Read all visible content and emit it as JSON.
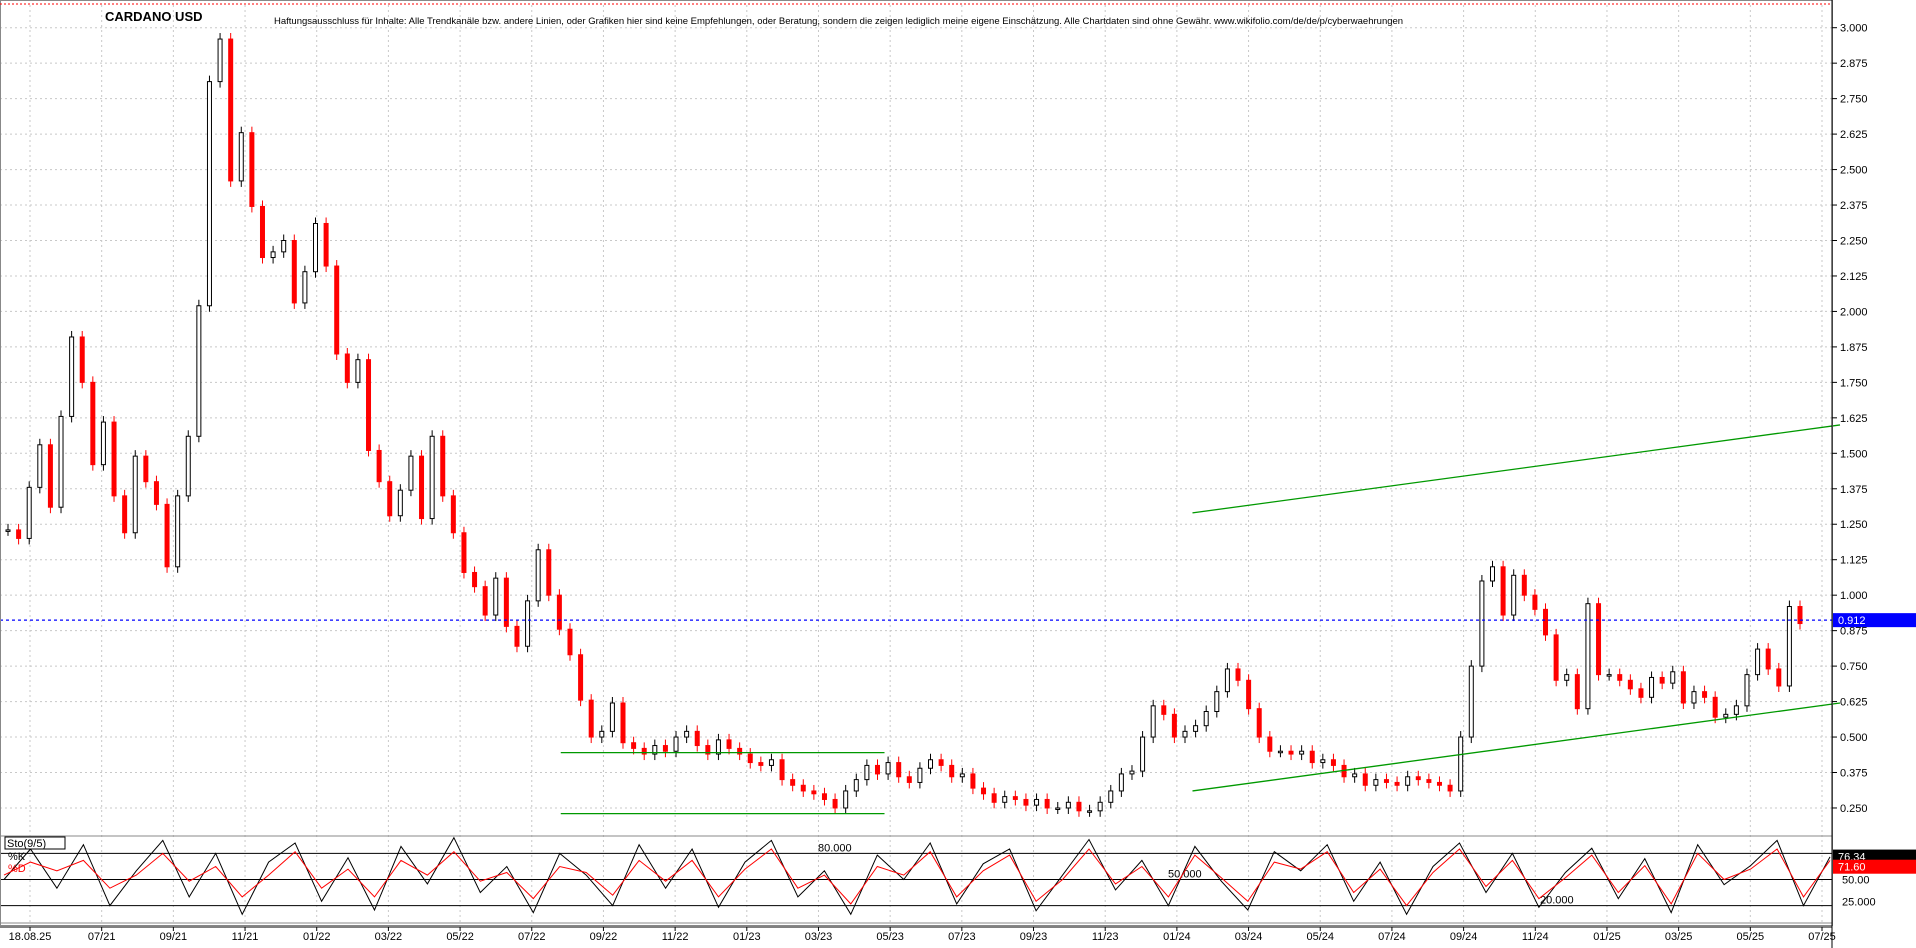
{
  "header": {
    "symbol": "CARDANO USD",
    "disclaimer": "Haftungsausschluss für Inhalte: Alle Trendkanäle bzw. andere Linien, oder Grafiken hier sind keine Empfehlungen, oder Beratung, sondern die zeigen lediglich meine eigene Einschätzung. Alle Chartdaten sind ohne Gewähr.  www.wikifolio.com/de/de/p/cyberwaehrungen"
  },
  "colors": {
    "up": "#000000",
    "down": "#ff0000",
    "trendline": "#009900",
    "current_price": "#0000ff",
    "grid": "#c8c8c8",
    "k_line": "#000000",
    "d_line": "#ff0000"
  },
  "chart_data": [
    {
      "type": "line",
      "name": "price",
      "y_ticks": [
        "3.000",
        "2.875",
        "2.750",
        "2.625",
        "2.500",
        "2.375",
        "2.250",
        "2.125",
        "2.000",
        "1.875",
        "1.750",
        "1.625",
        "1.500",
        "1.375",
        "1.250",
        "1.125",
        "1.000",
        "0.875",
        "0.750",
        "0.625",
        "0.500",
        "0.375",
        "0.250"
      ],
      "x_ticks": [
        "18.08.25",
        "07/21",
        "09/21",
        "11/21",
        "01/22",
        "03/22",
        "05/22",
        "07/22",
        "09/22",
        "11/22",
        "01/23",
        "03/23",
        "05/23",
        "07/23",
        "09/23",
        "11/23",
        "01/24",
        "03/24",
        "05/24",
        "07/24",
        "09/24",
        "11/24",
        "01/25",
        "03/25",
        "05/25",
        "07/25"
      ],
      "ylim": [
        0.19,
        3.08
      ],
      "current_price": {
        "value": 0.912,
        "label": "0.912"
      },
      "series": [
        {
          "values": [
            1.23,
            1.2,
            1.38,
            1.53,
            1.31,
            1.63,
            1.91,
            1.75,
            1.46,
            1.61,
            1.35,
            1.22,
            1.49,
            1.4,
            1.32,
            1.1,
            1.35,
            1.56,
            2.02,
            2.81,
            2.96,
            2.46,
            2.63,
            2.37,
            2.19,
            2.21,
            2.25,
            2.03,
            2.14,
            2.31,
            2.16,
            1.85,
            1.75,
            1.83,
            1.51,
            1.4,
            1.28,
            1.37,
            1.49,
            1.27,
            1.56,
            1.35,
            1.22,
            1.08,
            1.03,
            0.93,
            1.06,
            0.89,
            0.82,
            0.98,
            1.16,
            1.0,
            0.88,
            0.79,
            0.63,
            0.5,
            0.52,
            0.62,
            0.48,
            0.46,
            0.44,
            0.47,
            0.45,
            0.5,
            0.52,
            0.47,
            0.44,
            0.49,
            0.46,
            0.44,
            0.41,
            0.4,
            0.42,
            0.35,
            0.33,
            0.31,
            0.3,
            0.28,
            0.25,
            0.31,
            0.35,
            0.4,
            0.37,
            0.41,
            0.36,
            0.34,
            0.39,
            0.42,
            0.4,
            0.36,
            0.37,
            0.32,
            0.3,
            0.27,
            0.29,
            0.28,
            0.26,
            0.28,
            0.25,
            0.25,
            0.27,
            0.24,
            0.24,
            0.27,
            0.31,
            0.37,
            0.38,
            0.5,
            0.61,
            0.58,
            0.5,
            0.52,
            0.54,
            0.59,
            0.66,
            0.74,
            0.7,
            0.6,
            0.5,
            0.45,
            0.45,
            0.44,
            0.45,
            0.41,
            0.42,
            0.4,
            0.36,
            0.37,
            0.33,
            0.35,
            0.34,
            0.33,
            0.36,
            0.35,
            0.34,
            0.33,
            0.31,
            0.5,
            0.75,
            1.05,
            1.1,
            0.93,
            1.07,
            1.0,
            0.95,
            0.86,
            0.7,
            0.72,
            0.6,
            0.97,
            0.72,
            0.72,
            0.7,
            0.67,
            0.64,
            0.71,
            0.69,
            0.73,
            0.62,
            0.66,
            0.64,
            0.57,
            0.58,
            0.61,
            0.72,
            0.81,
            0.74,
            0.68,
            0.96,
            0.9
          ]
        }
      ],
      "lines": [
        {
          "name": "upper-channel",
          "points": [
            [
              1.5,
              1.29
            ],
            [
              2.32,
              1.6
            ]
          ]
        },
        {
          "name": "lower-channel",
          "points": [
            [
              1.5,
              0.31
            ],
            [
              2.32,
              0.62
            ]
          ]
        },
        {
          "name": "range-top",
          "points": [
            [
              0.7,
              0.445
            ],
            [
              1.11,
              0.445
            ]
          ]
        },
        {
          "name": "range-bottom",
          "points": [
            [
              0.7,
              0.23
            ],
            [
              1.11,
              0.23
            ]
          ]
        }
      ]
    },
    {
      "type": "line",
      "name": "stochastic",
      "title": "Sto(9/5)",
      "legend": [
        {
          "label": "%K",
          "value": "76.34"
        },
        {
          "label": "%D",
          "value": "71.60"
        }
      ],
      "levels": [
        "80.000",
        "50.000",
        "20.000"
      ],
      "y_ticks": [
        "50.00",
        "25.000"
      ],
      "series": [
        {
          "name": "%K",
          "values": [
            50,
            85,
            40,
            90,
            20,
            60,
            95,
            30,
            80,
            10,
            70,
            92,
            25,
            75,
            15,
            88,
            45,
            98,
            35,
            65,
            12,
            80,
            55,
            20,
            90,
            40,
            85,
            18,
            70,
            95,
            30,
            60,
            10,
            78,
            50,
            92,
            22,
            68,
            85,
            14,
            55,
            96,
            38,
            72,
            20,
            88,
            48,
            15,
            82,
            60,
            90,
            25,
            70,
            10,
            65,
            92,
            35,
            80,
            18,
            58,
            86,
            28,
            74,
            12,
            90,
            44,
            66,
            95,
            20,
            76
          ]
        },
        {
          "name": "%D",
          "values": [
            55,
            70,
            60,
            72,
            40,
            55,
            80,
            48,
            65,
            30,
            55,
            82,
            40,
            62,
            30,
            72,
            55,
            82,
            48,
            58,
            28,
            65,
            58,
            32,
            72,
            48,
            72,
            30,
            62,
            85,
            40,
            55,
            22,
            65,
            55,
            82,
            30,
            60,
            78,
            25,
            50,
            85,
            45,
            65,
            30,
            78,
            52,
            25,
            70,
            62,
            82,
            35,
            62,
            20,
            58,
            85,
            42,
            72,
            28,
            52,
            78,
            35,
            66,
            22,
            80,
            50,
            62,
            85,
            30,
            72
          ]
        }
      ]
    }
  ]
}
